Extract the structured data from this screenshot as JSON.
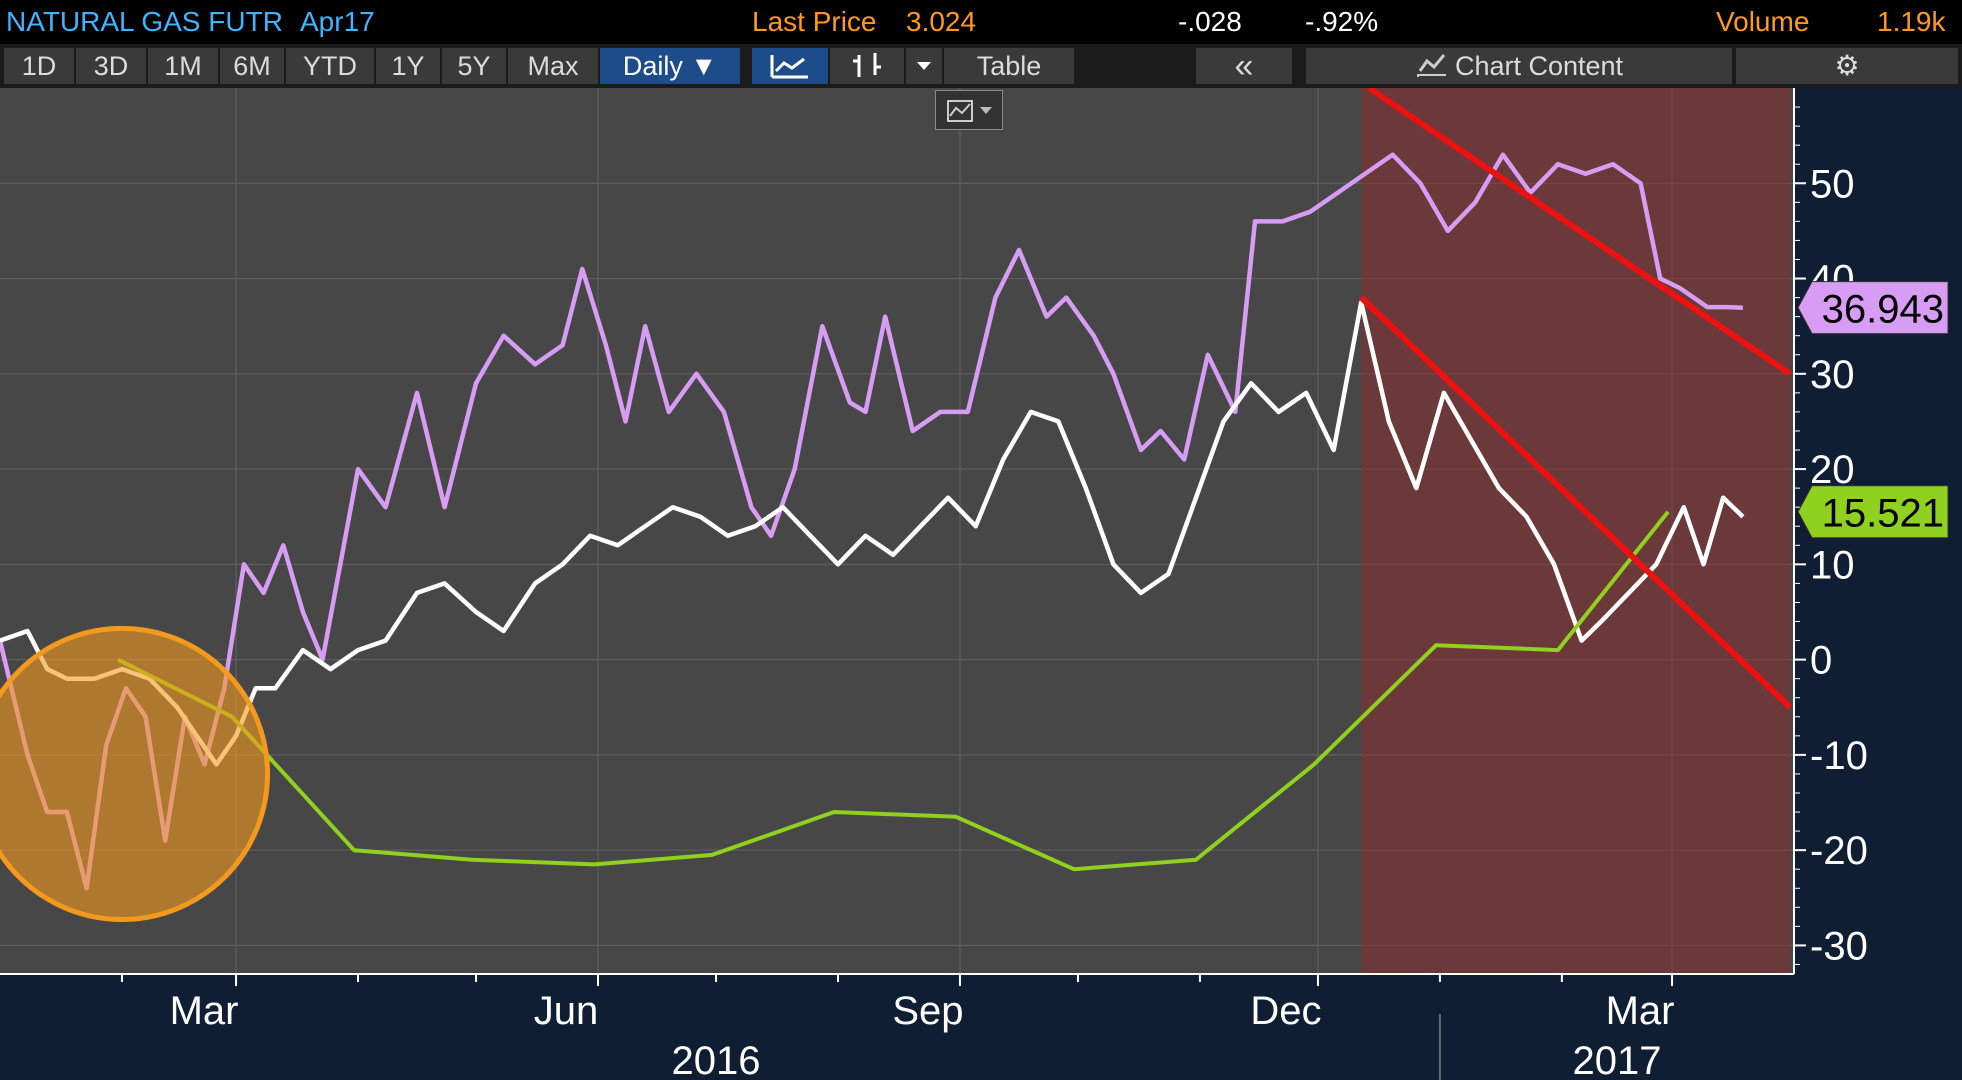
{
  "header": {
    "ticker": "NATURAL GAS FUTR",
    "contract": "Apr17",
    "last_price_label": "Last Price",
    "last_price": "3.024",
    "change": "-.028",
    "change_pct": "-.92%",
    "volume_label": "Volume",
    "volume": "1.19k"
  },
  "toolbar": {
    "ranges": [
      "1D",
      "3D",
      "1M",
      "6M",
      "YTD",
      "1Y",
      "5Y",
      "Max"
    ],
    "period": "Daily ▼",
    "table_label": "Table",
    "collapse_label": "«",
    "chart_content_label": "Chart Content",
    "icons": [
      "line-chart-icon",
      "bar-chart-icon",
      "dropdown-arrow-icon",
      "area-chart-icon",
      "gear-icon"
    ]
  },
  "colors": {
    "plot_bg": "#474747",
    "frame_bg": "#0f1e33",
    "purple_series": "#d79cf3",
    "white_series": "#ffffff",
    "green_series": "#8fd11e",
    "trend_lines": "#ee1111",
    "shaded_zone": "rgba(150,40,40,0.45)",
    "highlight_circle": "#f39a1e"
  },
  "chart_data": {
    "type": "line",
    "x_axis": {
      "month_labels": [
        "Mar",
        "Jun",
        "Sep",
        "Dec",
        "Mar"
      ],
      "month_label_dates": [
        "2016-03-01",
        "2016-06-01",
        "2016-09-01",
        "2016-12-01",
        "2017-03-01"
      ],
      "year_labels": [
        "2016",
        "2017"
      ],
      "range": [
        "2016-01-01",
        "2017-04-01"
      ]
    },
    "y_axis": {
      "ticks": [
        50,
        40,
        30,
        20,
        10,
        0,
        -10,
        -20,
        -30
      ],
      "tick_labels": [
        "50",
        "40",
        "30",
        "20",
        "10",
        "0",
        "-10",
        "-20",
        "-30"
      ],
      "range": [
        -33,
        60
      ]
    },
    "series": [
      {
        "color": "purple",
        "last_value_label": "36.943",
        "points": [
          [
            "2016-01-01",
            2
          ],
          [
            "2016-01-08",
            -10
          ],
          [
            "2016-01-13",
            -16
          ],
          [
            "2016-01-18",
            -16
          ],
          [
            "2016-01-23",
            -24
          ],
          [
            "2016-01-28",
            -9
          ],
          [
            "2016-02-02",
            -3
          ],
          [
            "2016-02-07",
            -6
          ],
          [
            "2016-02-12",
            -19
          ],
          [
            "2016-02-17",
            -6
          ],
          [
            "2016-02-22",
            -11
          ],
          [
            "2016-02-27",
            -3
          ],
          [
            "2016-03-03",
            10
          ],
          [
            "2016-03-08",
            7
          ],
          [
            "2016-03-13",
            12
          ],
          [
            "2016-03-18",
            5
          ],
          [
            "2016-03-23",
            0
          ],
          [
            "2016-04-01",
            20
          ],
          [
            "2016-04-08",
            16
          ],
          [
            "2016-04-16",
            28
          ],
          [
            "2016-04-23",
            16
          ],
          [
            "2016-05-01",
            29
          ],
          [
            "2016-05-08",
            34
          ],
          [
            "2016-05-16",
            31
          ],
          [
            "2016-05-23",
            33
          ],
          [
            "2016-05-28",
            41
          ],
          [
            "2016-06-03",
            33
          ],
          [
            "2016-06-08",
            25
          ],
          [
            "2016-06-13",
            35
          ],
          [
            "2016-06-19",
            26
          ],
          [
            "2016-06-26",
            30
          ],
          [
            "2016-07-03",
            26
          ],
          [
            "2016-07-10",
            16
          ],
          [
            "2016-07-15",
            13
          ],
          [
            "2016-07-21",
            20
          ],
          [
            "2016-07-28",
            35
          ],
          [
            "2016-08-04",
            27
          ],
          [
            "2016-08-08",
            26
          ],
          [
            "2016-08-13",
            36
          ],
          [
            "2016-08-20",
            24
          ],
          [
            "2016-08-27",
            26
          ],
          [
            "2016-09-03",
            26
          ],
          [
            "2016-09-10",
            38
          ],
          [
            "2016-09-16",
            43
          ],
          [
            "2016-09-23",
            36
          ],
          [
            "2016-09-28",
            38
          ],
          [
            "2016-10-05",
            34
          ],
          [
            "2016-10-10",
            30
          ],
          [
            "2016-10-17",
            22
          ],
          [
            "2016-10-22",
            24
          ],
          [
            "2016-10-28",
            21
          ],
          [
            "2016-11-03",
            32
          ],
          [
            "2016-11-10",
            26
          ],
          [
            "2016-11-15",
            46
          ],
          [
            "2016-11-22",
            46
          ],
          [
            "2016-11-29",
            47
          ],
          [
            "2016-12-06",
            49
          ],
          [
            "2016-12-13",
            51
          ],
          [
            "2016-12-20",
            53
          ],
          [
            "2016-12-27",
            50
          ],
          [
            "2017-01-03",
            45
          ],
          [
            "2017-01-10",
            48
          ],
          [
            "2017-01-17",
            53
          ],
          [
            "2017-01-24",
            49
          ],
          [
            "2017-01-31",
            52
          ],
          [
            "2017-02-07",
            51
          ],
          [
            "2017-02-14",
            52
          ],
          [
            "2017-02-21",
            50
          ],
          [
            "2017-02-26",
            40
          ],
          [
            "2017-03-03",
            39
          ],
          [
            "2017-03-10",
            37
          ],
          [
            "2017-03-15",
            37
          ],
          [
            "2017-03-19",
            36.943
          ]
        ]
      },
      {
        "color": "white",
        "points": [
          [
            "2016-01-01",
            2
          ],
          [
            "2016-01-08",
            3
          ],
          [
            "2016-01-13",
            -1
          ],
          [
            "2016-01-18",
            -2
          ],
          [
            "2016-01-25",
            -2
          ],
          [
            "2016-02-01",
            -1
          ],
          [
            "2016-02-08",
            -2
          ],
          [
            "2016-02-15",
            -5
          ],
          [
            "2016-02-20",
            -8
          ],
          [
            "2016-02-25",
            -11
          ],
          [
            "2016-03-01",
            -8
          ],
          [
            "2016-03-06",
            -3
          ],
          [
            "2016-03-11",
            -3
          ],
          [
            "2016-03-18",
            1
          ],
          [
            "2016-03-25",
            -1
          ],
          [
            "2016-04-01",
            1
          ],
          [
            "2016-04-08",
            2
          ],
          [
            "2016-04-16",
            7
          ],
          [
            "2016-04-23",
            8
          ],
          [
            "2016-05-01",
            5
          ],
          [
            "2016-05-08",
            3
          ],
          [
            "2016-05-16",
            8
          ],
          [
            "2016-05-23",
            10
          ],
          [
            "2016-05-30",
            13
          ],
          [
            "2016-06-06",
            12
          ],
          [
            "2016-06-13",
            14
          ],
          [
            "2016-06-20",
            16
          ],
          [
            "2016-06-27",
            15
          ],
          [
            "2016-07-04",
            13
          ],
          [
            "2016-07-11",
            14
          ],
          [
            "2016-07-18",
            16
          ],
          [
            "2016-07-25",
            13
          ],
          [
            "2016-08-01",
            10
          ],
          [
            "2016-08-08",
            13
          ],
          [
            "2016-08-15",
            11
          ],
          [
            "2016-08-22",
            14
          ],
          [
            "2016-08-29",
            17
          ],
          [
            "2016-09-05",
            14
          ],
          [
            "2016-09-12",
            21
          ],
          [
            "2016-09-19",
            26
          ],
          [
            "2016-09-26",
            25
          ],
          [
            "2016-10-03",
            18
          ],
          [
            "2016-10-10",
            10
          ],
          [
            "2016-10-17",
            7
          ],
          [
            "2016-10-24",
            9
          ],
          [
            "2016-10-31",
            17
          ],
          [
            "2016-11-07",
            25
          ],
          [
            "2016-11-14",
            29
          ],
          [
            "2016-11-21",
            26
          ],
          [
            "2016-11-28",
            28
          ],
          [
            "2016-12-05",
            22
          ],
          [
            "2016-12-12",
            37.5
          ],
          [
            "2016-12-19",
            25
          ],
          [
            "2016-12-26",
            18
          ],
          [
            "2017-01-02",
            28
          ],
          [
            "2017-01-09",
            23
          ],
          [
            "2017-01-16",
            18
          ],
          [
            "2017-01-23",
            15
          ],
          [
            "2017-01-30",
            10
          ],
          [
            "2017-02-06",
            2
          ],
          [
            "2017-02-11",
            4
          ],
          [
            "2017-02-18",
            7
          ],
          [
            "2017-02-25",
            10
          ],
          [
            "2017-03-04",
            16
          ],
          [
            "2017-03-09",
            10
          ],
          [
            "2017-03-14",
            17
          ],
          [
            "2017-03-19",
            15
          ]
        ]
      },
      {
        "color": "green",
        "last_value_label": "15.521",
        "points": [
          [
            "2016-01-31",
            0
          ],
          [
            "2016-02-29",
            -6
          ],
          [
            "2016-03-31",
            -20
          ],
          [
            "2016-04-30",
            -21
          ],
          [
            "2016-05-31",
            -21.5
          ],
          [
            "2016-06-30",
            -20.5
          ],
          [
            "2016-07-31",
            -16
          ],
          [
            "2016-08-31",
            -16.5
          ],
          [
            "2016-09-30",
            -22
          ],
          [
            "2016-10-31",
            -21
          ],
          [
            "2016-11-30",
            -11
          ],
          [
            "2016-12-31",
            1.5
          ],
          [
            "2017-01-31",
            1
          ],
          [
            "2017-02-28",
            15.521
          ]
        ]
      }
    ],
    "annotations": {
      "trend_lines": [
        [
          [
            "2016-12-14",
            60
          ],
          [
            "2017-03-31",
            30
          ]
        ],
        [
          [
            "2016-12-12",
            38
          ],
          [
            "2017-03-31",
            -5
          ]
        ]
      ],
      "shaded_zone": {
        "from": "2016-12-12",
        "to": "2017-03-31"
      },
      "highlight_circle": {
        "center": [
          "2016-02-01",
          -12
        ],
        "radius_days": 37
      }
    },
    "grid": true,
    "legend": "none"
  }
}
